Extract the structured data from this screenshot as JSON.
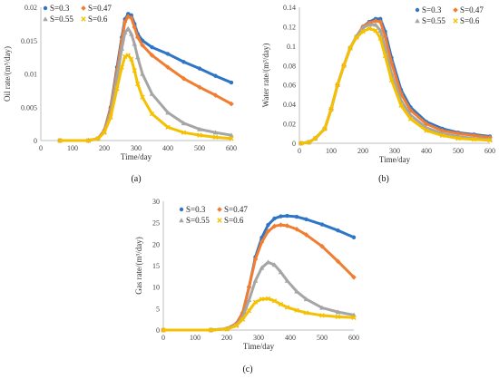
{
  "colors": {
    "S=0.3": "#2E75C6",
    "S=0.47": "#F07D30",
    "S=0.55": "#A5A5A5",
    "S=0.6": "#F5C000"
  },
  "chart_data": [
    {
      "id": "a",
      "type": "scatter",
      "caption": "(a)",
      "xlabel": "Time/day",
      "ylabel": "Oil rate/(m³/day)",
      "xlim": [
        0,
        600
      ],
      "ylim": [
        0,
        0.02
      ],
      "xticks": [
        0,
        100,
        200,
        300,
        400,
        500,
        600
      ],
      "yticks": [
        0,
        0.005,
        0.01,
        0.015,
        0.02
      ],
      "ytick_labels": [
        "0",
        "0.005",
        "0.01",
        "0.015",
        "0.02"
      ],
      "grid": false,
      "legend": "top-left, inside, 2 columns",
      "series": [
        {
          "name": "S=0.3",
          "marker": "circle",
          "x": [
            60,
            150,
            180,
            200,
            220,
            240,
            255,
            265,
            275,
            285,
            295,
            305,
            320,
            350,
            400,
            450,
            500,
            550,
            600
          ],
          "y": [
            0,
            0,
            0.0003,
            0.0015,
            0.005,
            0.011,
            0.0155,
            0.0182,
            0.019,
            0.0188,
            0.0175,
            0.016,
            0.015,
            0.014,
            0.013,
            0.0118,
            0.0108,
            0.0097,
            0.0087
          ]
        },
        {
          "name": "S=0.47",
          "marker": "diamond",
          "x": [
            60,
            150,
            180,
            200,
            220,
            240,
            255,
            265,
            275,
            285,
            295,
            305,
            320,
            350,
            400,
            450,
            500,
            550,
            600
          ],
          "y": [
            0,
            0,
            0.0003,
            0.0015,
            0.0048,
            0.0105,
            0.015,
            0.0178,
            0.0186,
            0.0184,
            0.017,
            0.0155,
            0.0143,
            0.0128,
            0.011,
            0.0093,
            0.008,
            0.0068,
            0.0055
          ]
        },
        {
          "name": "S=0.55",
          "marker": "triangle",
          "x": [
            60,
            150,
            180,
            200,
            220,
            240,
            255,
            265,
            275,
            285,
            295,
            305,
            320,
            350,
            400,
            450,
            500,
            550,
            600
          ],
          "y": [
            0,
            0,
            0.0003,
            0.0013,
            0.0042,
            0.0095,
            0.0138,
            0.0162,
            0.0168,
            0.016,
            0.0145,
            0.0125,
            0.01,
            0.007,
            0.0042,
            0.0026,
            0.0017,
            0.0012,
            0.0008
          ]
        },
        {
          "name": "S=0.6",
          "marker": "x",
          "x": [
            60,
            150,
            180,
            200,
            220,
            240,
            255,
            265,
            275,
            285,
            295,
            305,
            320,
            350,
            400,
            450,
            500,
            550,
            600
          ],
          "y": [
            0,
            0,
            0.0003,
            0.0012,
            0.0035,
            0.0078,
            0.011,
            0.0126,
            0.0128,
            0.0122,
            0.0105,
            0.0085,
            0.0065,
            0.004,
            0.002,
            0.0012,
            0.0008,
            0.0005,
            0.0003
          ]
        }
      ]
    },
    {
      "id": "b",
      "type": "scatter",
      "caption": "(b)",
      "xlabel": "Time/day",
      "ylabel": "Water rate/(m³/day)",
      "xlim": [
        0,
        600
      ],
      "ylim": [
        0,
        0.14
      ],
      "xticks": [
        0,
        100,
        200,
        300,
        400,
        500,
        600
      ],
      "yticks": [
        0,
        0.02,
        0.04,
        0.06,
        0.08,
        0.1,
        0.12,
        0.14
      ],
      "ytick_labels": [
        "0",
        "0.02",
        "0.04",
        "0.06",
        "0.08",
        "0.1",
        "0.12",
        "0.14"
      ],
      "grid": false,
      "legend": "top-right, inside, 2 columns",
      "series": [
        {
          "name": "S=0.3",
          "marker": "circle",
          "x": [
            5,
            30,
            50,
            80,
            100,
            120,
            140,
            160,
            180,
            200,
            220,
            240,
            255,
            270,
            290,
            320,
            350,
            400,
            450,
            500,
            550,
            600
          ],
          "y": [
            0,
            0.001,
            0.005,
            0.015,
            0.035,
            0.06,
            0.08,
            0.098,
            0.11,
            0.12,
            0.125,
            0.128,
            0.128,
            0.115,
            0.088,
            0.055,
            0.037,
            0.022,
            0.015,
            0.011,
            0.009,
            0.007
          ]
        },
        {
          "name": "S=0.47",
          "marker": "diamond",
          "x": [
            5,
            30,
            50,
            80,
            100,
            120,
            140,
            160,
            180,
            200,
            220,
            240,
            255,
            270,
            290,
            320,
            350,
            400,
            450,
            500,
            550,
            600
          ],
          "y": [
            0,
            0.001,
            0.005,
            0.015,
            0.035,
            0.06,
            0.08,
            0.098,
            0.11,
            0.12,
            0.124,
            0.126,
            0.125,
            0.11,
            0.083,
            0.051,
            0.034,
            0.02,
            0.013,
            0.01,
            0.008,
            0.006
          ]
        },
        {
          "name": "S=0.55",
          "marker": "triangle",
          "x": [
            5,
            30,
            50,
            80,
            100,
            120,
            140,
            160,
            180,
            200,
            220,
            240,
            255,
            270,
            290,
            320,
            350,
            400,
            450,
            500,
            550,
            600
          ],
          "y": [
            0,
            0.001,
            0.005,
            0.015,
            0.035,
            0.06,
            0.08,
            0.098,
            0.11,
            0.119,
            0.122,
            0.122,
            0.116,
            0.098,
            0.072,
            0.044,
            0.029,
            0.016,
            0.01,
            0.007,
            0.005,
            0.004
          ]
        },
        {
          "name": "S=0.6",
          "marker": "x",
          "x": [
            5,
            30,
            50,
            80,
            100,
            120,
            140,
            160,
            180,
            200,
            220,
            240,
            255,
            270,
            290,
            320,
            350,
            400,
            450,
            500,
            550,
            600
          ],
          "y": [
            0,
            0.001,
            0.005,
            0.015,
            0.035,
            0.06,
            0.08,
            0.098,
            0.109,
            0.115,
            0.118,
            0.116,
            0.108,
            0.09,
            0.065,
            0.039,
            0.025,
            0.013,
            0.008,
            0.005,
            0.004,
            0.003
          ]
        }
      ]
    },
    {
      "id": "c",
      "type": "scatter",
      "caption": "(c)",
      "xlabel": "Time/day",
      "ylabel": "Gas rate/(m³/day)",
      "xlim": [
        0,
        600
      ],
      "ylim": [
        0,
        30
      ],
      "xticks": [
        0,
        100,
        200,
        300,
        400,
        500,
        600
      ],
      "yticks": [
        0,
        5,
        10,
        15,
        20,
        25,
        30
      ],
      "ytick_labels": [
        "0",
        "5",
        "10",
        "15",
        "20",
        "25",
        "30"
      ],
      "grid": false,
      "legend": "top-left, inside, 2 columns",
      "series": [
        {
          "name": "S=0.3",
          "marker": "circle",
          "x": [
            0,
            150,
            200,
            230,
            250,
            270,
            290,
            310,
            330,
            350,
            370,
            390,
            420,
            450,
            500,
            550,
            600
          ],
          "y": [
            0,
            0,
            0.3,
            1.5,
            4,
            10,
            17,
            21.5,
            24.5,
            26,
            26.5,
            26.6,
            26.4,
            25.8,
            24.6,
            23.2,
            21.6
          ]
        },
        {
          "name": "S=0.47",
          "marker": "diamond",
          "x": [
            0,
            150,
            200,
            230,
            250,
            270,
            290,
            310,
            330,
            350,
            370,
            390,
            420,
            450,
            500,
            550,
            600
          ],
          "y": [
            0,
            0,
            0.3,
            1.5,
            4,
            10,
            16.5,
            20.5,
            23,
            24.2,
            24.5,
            24.3,
            23.5,
            22.2,
            19.5,
            16,
            12.3
          ]
        },
        {
          "name": "S=0.55",
          "marker": "triangle",
          "x": [
            0,
            150,
            200,
            230,
            250,
            270,
            290,
            310,
            330,
            350,
            370,
            390,
            420,
            450,
            500,
            550,
            600
          ],
          "y": [
            0,
            0,
            0.3,
            1.2,
            3,
            7,
            11.5,
            14.5,
            15.8,
            15.2,
            13.5,
            11.5,
            9,
            7.2,
            5.2,
            4.2,
            3.5
          ]
        },
        {
          "name": "S=0.6",
          "marker": "x",
          "x": [
            0,
            150,
            200,
            230,
            250,
            270,
            290,
            310,
            330,
            350,
            370,
            390,
            420,
            450,
            500,
            550,
            600
          ],
          "y": [
            0,
            0,
            0.2,
            1,
            2.5,
            4.5,
            6.5,
            7.2,
            7.3,
            6.8,
            6,
            5.3,
            4.6,
            4,
            3.4,
            3.1,
            2.9
          ]
        }
      ]
    }
  ]
}
